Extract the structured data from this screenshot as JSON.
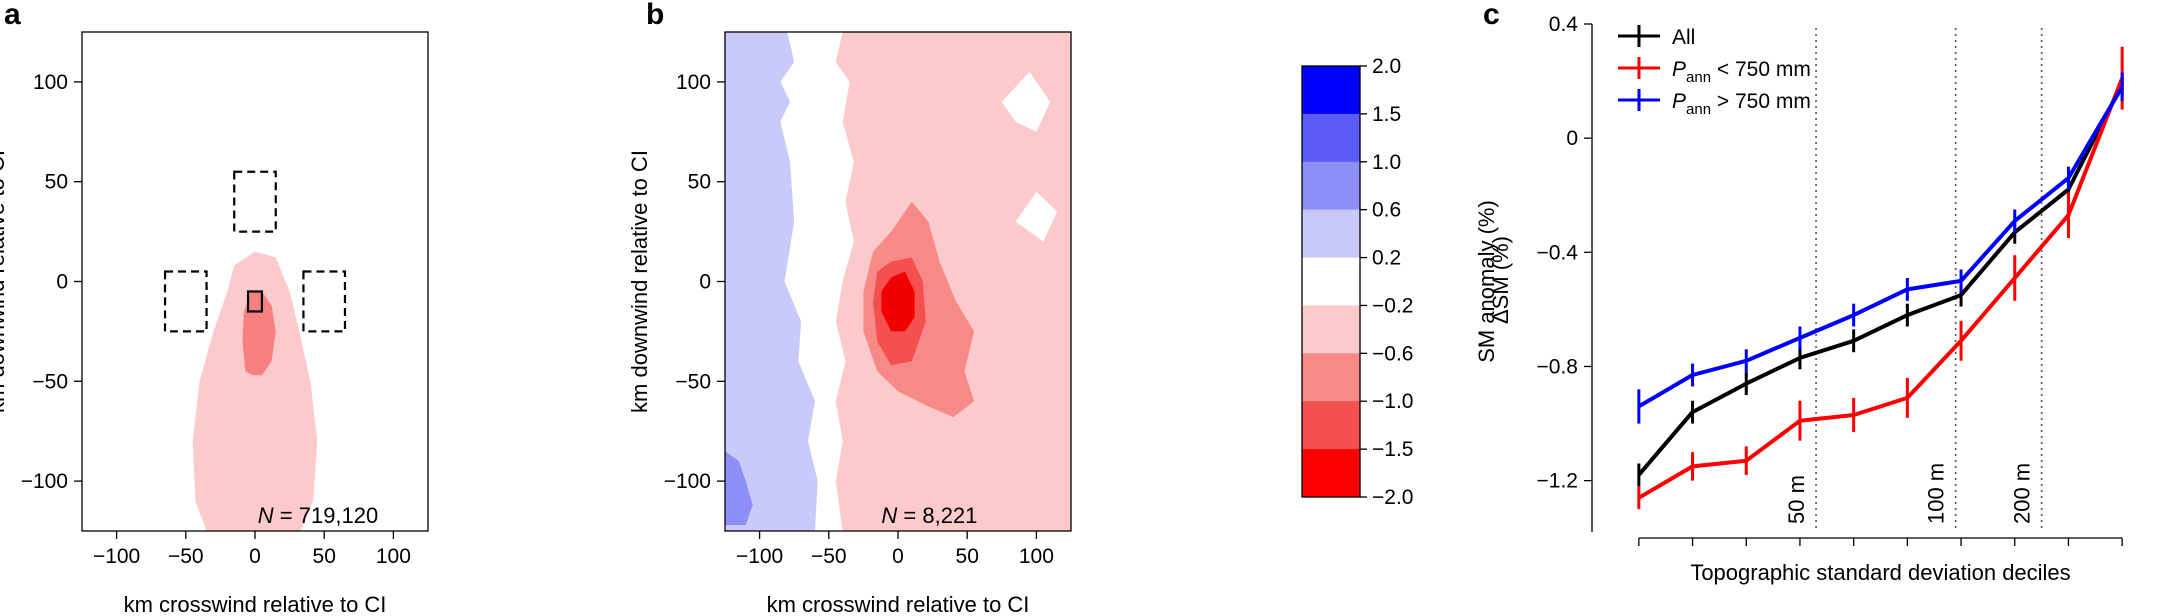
{
  "chart_data": [
    {
      "type": "contour",
      "panel_label": "a",
      "xlabel": "km crosswind relative to CI",
      "ylabel": "km downwind relative to CI",
      "xlim": [
        -125,
        125
      ],
      "ylim": [
        -125,
        125
      ],
      "xticks": [
        -100,
        -50,
        0,
        50,
        100
      ],
      "yticks": [
        -100,
        -50,
        0,
        50,
        100
      ],
      "annotation": {
        "prefix": "N",
        "value": " = 719,120"
      },
      "colors": {
        "light_red": "#fccaca",
        "mid_red": "#f78181"
      },
      "light_region": [
        [
          -35,
          -125
        ],
        [
          -43,
          -110
        ],
        [
          -45,
          -80
        ],
        [
          -40,
          -50
        ],
        [
          -30,
          -25
        ],
        [
          -20,
          -5
        ],
        [
          -15,
          8
        ],
        [
          0,
          15
        ],
        [
          15,
          12
        ],
        [
          25,
          -5
        ],
        [
          32,
          -25
        ],
        [
          40,
          -50
        ],
        [
          45,
          -80
        ],
        [
          42,
          -110
        ],
        [
          33,
          -125
        ]
      ],
      "mid_region": [
        [
          -7,
          -45
        ],
        [
          -9,
          -30
        ],
        [
          -8,
          -15
        ],
        [
          -3,
          -5
        ],
        [
          5,
          -5
        ],
        [
          12,
          -12
        ],
        [
          15,
          -25
        ],
        [
          12,
          -40
        ],
        [
          5,
          -47
        ],
        [
          -2,
          -47
        ]
      ],
      "dashed_boxes": [
        {
          "x": -15,
          "y": 25,
          "w": 30,
          "h": 30
        },
        {
          "x": -65,
          "y": -25,
          "w": 30,
          "h": 30
        },
        {
          "x": 35,
          "y": -25,
          "w": 30,
          "h": 30
        }
      ],
      "solid_box": {
        "x": -5,
        "y": -15,
        "w": 10,
        "h": 10
      }
    },
    {
      "type": "contour",
      "panel_label": "b",
      "xlabel": "km crosswind relative to CI",
      "ylabel": "km downwind relative to CI",
      "xlim": [
        -125,
        125
      ],
      "ylim": [
        -125,
        125
      ],
      "xticks": [
        -100,
        -50,
        0,
        50,
        100
      ],
      "yticks": [
        -100,
        -50,
        0,
        50,
        100
      ],
      "annotation": {
        "prefix": "N",
        "value": " = 8,221"
      },
      "colorbar": {
        "label": "SM anomaly (%)",
        "levels": [
          "2.0",
          "1.5",
          "1.0",
          "0.6",
          "0.2",
          "−0.2",
          "−0.6",
          "−1.0",
          "−1.5",
          "−2.0"
        ],
        "colors": [
          "#0000ff",
          "#5b5bf5",
          "#8e8ef7",
          "#c8c8f9",
          "#ffffff",
          "#fccaca",
          "#f78989",
          "#f45050",
          "#ff0000"
        ]
      },
      "colors": {
        "light_blue": "#cacafa",
        "mid_blue": "#8e8ef7",
        "light_red": "#fccaca",
        "mid_red": "#f78989",
        "dark_red": "#f45050",
        "deep_red": "#f00000"
      },
      "blue_region": [
        [
          -125,
          125
        ],
        [
          -80,
          125
        ],
        [
          -75,
          110
        ],
        [
          -85,
          100
        ],
        [
          -78,
          90
        ],
        [
          -85,
          80
        ],
        [
          -78,
          60
        ],
        [
          -75,
          30
        ],
        [
          -82,
          0
        ],
        [
          -70,
          -20
        ],
        [
          -72,
          -40
        ],
        [
          -60,
          -60
        ],
        [
          -65,
          -80
        ],
        [
          -58,
          -100
        ],
        [
          -60,
          -125
        ],
        [
          -125,
          -125
        ]
      ],
      "blue_patch": [
        [
          -125,
          -85
        ],
        [
          -115,
          -90
        ],
        [
          -110,
          -100
        ],
        [
          -105,
          -112
        ],
        [
          -110,
          -122
        ],
        [
          -125,
          -122
        ]
      ],
      "white_region": [
        [
          -80,
          125
        ],
        [
          -40,
          125
        ],
        [
          -45,
          110
        ],
        [
          -35,
          100
        ],
        [
          -40,
          80
        ],
        [
          -32,
          60
        ],
        [
          -38,
          40
        ],
        [
          -32,
          20
        ],
        [
          -40,
          0
        ],
        [
          -45,
          -20
        ],
        [
          -38,
          -40
        ],
        [
          -45,
          -60
        ],
        [
          -40,
          -80
        ],
        [
          -45,
          -100
        ],
        [
          -40,
          -125
        ],
        [
          -60,
          -125
        ],
        [
          -58,
          -100
        ],
        [
          -65,
          -80
        ],
        [
          -60,
          -60
        ],
        [
          -72,
          -40
        ],
        [
          -70,
          -20
        ],
        [
          -82,
          0
        ],
        [
          -75,
          30
        ],
        [
          -78,
          60
        ],
        [
          -85,
          80
        ],
        [
          -78,
          90
        ],
        [
          -85,
          100
        ],
        [
          -75,
          110
        ]
      ],
      "light_red_region": [
        [
          -40,
          125
        ],
        [
          125,
          125
        ],
        [
          125,
          -125
        ],
        [
          -40,
          -125
        ],
        [
          -45,
          -100
        ],
        [
          -40,
          -80
        ],
        [
          -45,
          -60
        ],
        [
          -38,
          -40
        ],
        [
          -45,
          -20
        ],
        [
          -40,
          0
        ],
        [
          -32,
          20
        ],
        [
          -38,
          40
        ],
        [
          -32,
          60
        ],
        [
          -40,
          80
        ],
        [
          -35,
          100
        ],
        [
          -45,
          110
        ]
      ],
      "white_patches": [
        [
          [
            75,
            90
          ],
          [
            95,
            105
          ],
          [
            110,
            90
          ],
          [
            100,
            75
          ],
          [
            85,
            80
          ]
        ],
        [
          [
            85,
            30
          ],
          [
            100,
            45
          ],
          [
            115,
            35
          ],
          [
            105,
            20
          ]
        ]
      ],
      "mid_red_region": [
        [
          -5,
          25
        ],
        [
          10,
          40
        ],
        [
          22,
          30
        ],
        [
          30,
          10
        ],
        [
          42,
          -10
        ],
        [
          55,
          -25
        ],
        [
          48,
          -45
        ],
        [
          55,
          -60
        ],
        [
          40,
          -68
        ],
        [
          20,
          -62
        ],
        [
          0,
          -55
        ],
        [
          -15,
          -45
        ],
        [
          -25,
          -25
        ],
        [
          -25,
          -5
        ],
        [
          -18,
          15
        ]
      ],
      "dark_red_region": [
        [
          -5,
          10
        ],
        [
          10,
          12
        ],
        [
          18,
          0
        ],
        [
          20,
          -20
        ],
        [
          10,
          -40
        ],
        [
          -5,
          -42
        ],
        [
          -15,
          -30
        ],
        [
          -18,
          -10
        ],
        [
          -15,
          5
        ]
      ],
      "deep_red_region": [
        [
          -5,
          2
        ],
        [
          5,
          5
        ],
        [
          12,
          -5
        ],
        [
          12,
          -18
        ],
        [
          5,
          -25
        ],
        [
          -5,
          -25
        ],
        [
          -12,
          -15
        ],
        [
          -12,
          -5
        ]
      ]
    },
    {
      "type": "line",
      "panel_label": "c",
      "xlabel": "Topographic standard deviation deciles",
      "ylabel": "ΔSM (%)",
      "ylim": [
        -1.38,
        0.4
      ],
      "yticks": [
        0.4,
        0,
        -0.4,
        -0.8,
        -1.2
      ],
      "ytick_labels": [
        "0.4",
        "0",
        "−0.4",
        "−0.8",
        "−1.2"
      ],
      "x": [
        1,
        2,
        3,
        4,
        5,
        6,
        7,
        8,
        9,
        10
      ],
      "xlim": [
        0.5,
        10.5
      ],
      "vlines": [
        {
          "x": 4.3,
          "label": "50 m"
        },
        {
          "x": 6.9,
          "label": "100 m"
        },
        {
          "x": 8.5,
          "label": "200 m"
        }
      ],
      "legend_position": "top-left",
      "series": [
        {
          "name": "All",
          "legend_main": "All",
          "legend_sub": "",
          "legend_rest": "",
          "color": "#000000",
          "values": [
            -1.18,
            -0.96,
            -0.86,
            -0.77,
            -0.71,
            -0.62,
            -0.55,
            -0.33,
            -0.18,
            0.19
          ],
          "errors": [
            0.03,
            0.03,
            0.03,
            0.03,
            0.03,
            0.03,
            0.03,
            0.03,
            0.03,
            0.04
          ]
        },
        {
          "name": "Pann < 750 mm",
          "legend_main": "P",
          "legend_sub": "ann",
          "legend_rest": " < 750 mm",
          "color": "#ff0000",
          "values": [
            -1.26,
            -1.15,
            -1.13,
            -0.99,
            -0.97,
            -0.91,
            -0.71,
            -0.49,
            -0.27,
            0.21
          ],
          "errors": [
            0.04,
            0.05,
            0.05,
            0.07,
            0.06,
            0.07,
            0.07,
            0.08,
            0.08,
            0.11
          ]
        },
        {
          "name": "Pann > 750 mm",
          "legend_main": "P",
          "legend_sub": "ann",
          "legend_rest": " > 750 mm",
          "color": "#0000ff",
          "values": [
            -0.94,
            -0.83,
            -0.78,
            -0.7,
            -0.62,
            -0.53,
            -0.5,
            -0.29,
            -0.14,
            0.18
          ],
          "errors": [
            0.06,
            0.04,
            0.04,
            0.03,
            0.03,
            0.03,
            0.03,
            0.04,
            0.04,
            0.05
          ]
        }
      ]
    }
  ]
}
